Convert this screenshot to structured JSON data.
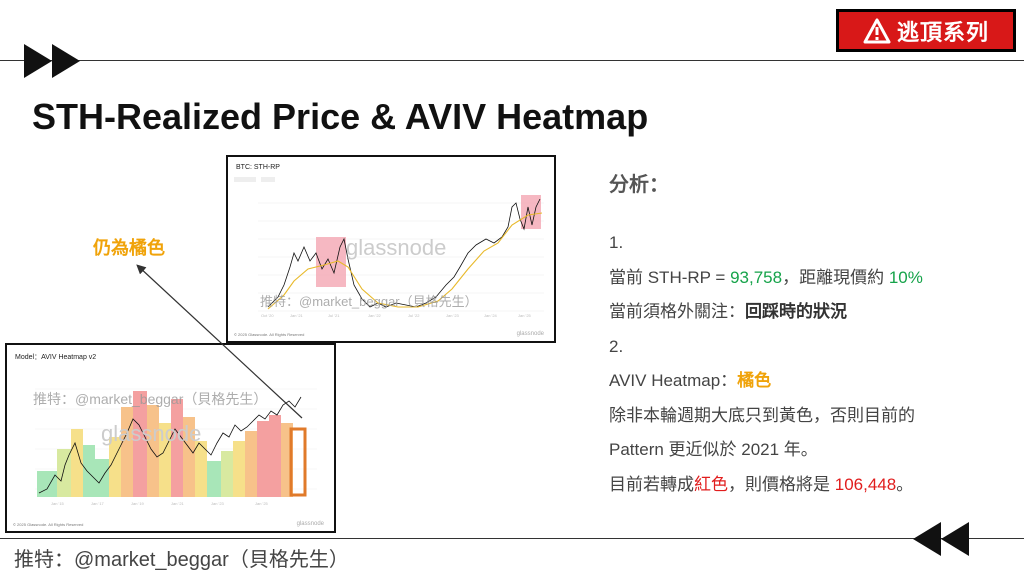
{
  "badge": {
    "text": "逃頂系列"
  },
  "slide": {
    "title": "STH-Realized Price & AVIV Heatmap"
  },
  "chart1": {
    "title": "BTC: STH-RP",
    "watermark": "推特：@market_beggar（貝格先生）",
    "logo": "glassnode",
    "copyright": "© 2025 Glassnode. All Rights Reserved",
    "brand": "glassnode"
  },
  "chart2": {
    "title": "Model：AVIV Heatmap v2",
    "watermark": "推特：@market_beggar（貝格先生）",
    "logo": "glassnode",
    "copyright": "© 2025 Glassnode. All Rights Reserved",
    "brand": "glassnode"
  },
  "annotation": {
    "label": "仍為橘色"
  },
  "analysis": {
    "heading": "分析：",
    "l1": "1.",
    "l2_pre": "當前 STH-RP = ",
    "l2_val": "93,758",
    "l2_mid": "，距離現價約 ",
    "l2_pct": "10%",
    "l3_pre": "當前須格外關注：",
    "l3_bold": "回踩時的狀況",
    "l4": "2.",
    "l5_pre": "AVIV Heatmap：",
    "l5_val": "橘色",
    "l6": "除非本輪週期大底只到黃色，否則目前的",
    "l7": "Pattern 更近似於 2021 年。",
    "l8_pre": "目前若轉成",
    "l8_red": "紅色",
    "l8_mid": "，則價格將是 ",
    "l8_val": "106,448",
    "l8_end": "。"
  },
  "footer": {
    "text": "推特：@market_beggar（貝格先生）"
  },
  "colors": {
    "accent_red": "#d81818",
    "green": "#16a34a",
    "orange": "#f0a30a",
    "red_text": "#e11d1d"
  }
}
